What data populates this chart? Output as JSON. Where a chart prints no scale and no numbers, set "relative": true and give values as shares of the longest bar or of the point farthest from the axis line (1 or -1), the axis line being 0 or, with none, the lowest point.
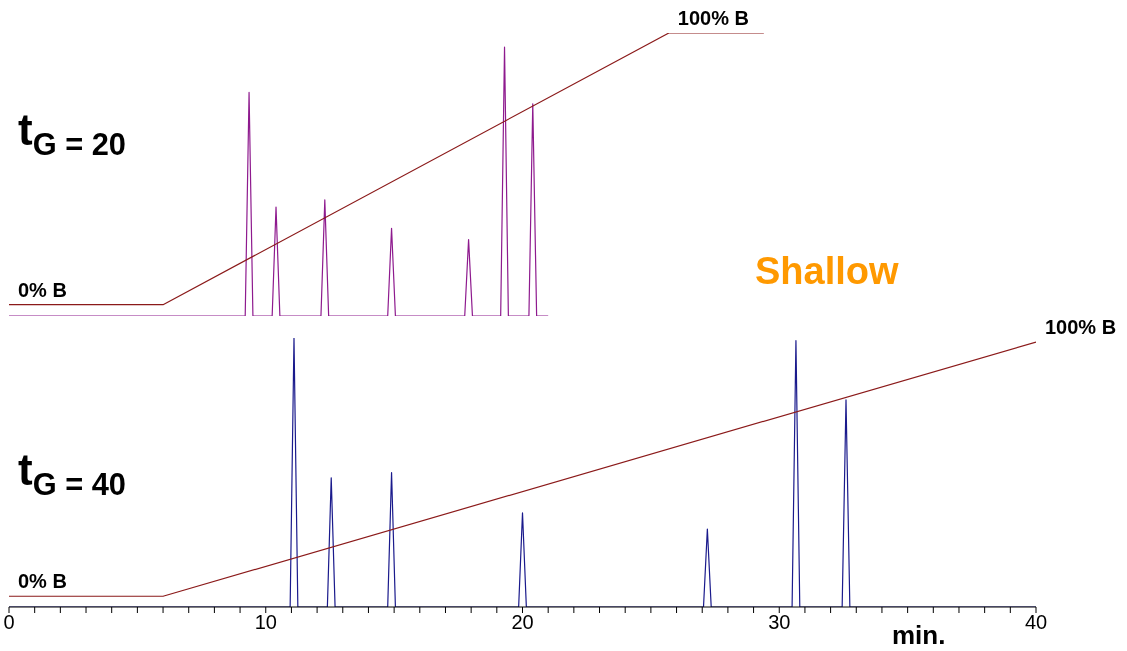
{
  "chart_data": [
    {
      "type": "line",
      "relative": true,
      "xlim": [
        0,
        40
      ],
      "tick_labels": false,
      "annotations": [
        "t$_{G = 20}$",
        "Shallow",
        {
          "text": "0% B",
          "x": 0,
          "y": 0.04
        },
        {
          "text": "100% B",
          "x": 25.7,
          "y": 1
        }
      ],
      "series": [
        {
          "color": "#8e1a8e",
          "x": [
            0,
            9.2,
            9.35,
            9.5,
            10.25,
            10.4,
            10.55,
            12.15,
            12.3,
            12.45,
            14.75,
            14.9,
            15.05,
            17.75,
            17.9,
            18.05,
            19.15,
            19.3,
            19.45,
            20.25,
            20.4,
            20.55,
            21
          ],
          "values": [
            0,
            0,
            0.79,
            0,
            0,
            0.385,
            0,
            0,
            0.41,
            0,
            0,
            0.31,
            0,
            0,
            0.27,
            0,
            0,
            0.95,
            0,
            0,
            0.75,
            0,
            0
          ]
        },
        {
          "color": "#8b1a1a",
          "x": [
            0,
            6,
            25.7,
            29.4
          ],
          "values": [
            0.04,
            0.04,
            1,
            1
          ]
        }
      ]
    },
    {
      "type": "line",
      "relative": true,
      "xlim": [
        0,
        40
      ],
      "xlabel": "min.",
      "xticks": [
        0,
        {
          "value": 1,
          "label": null
        },
        {
          "value": 2,
          "label": null
        },
        {
          "value": 3,
          "label": null
        },
        {
          "value": 4,
          "label": null
        },
        {
          "value": 5,
          "label": null
        },
        {
          "value": 6,
          "label": null
        },
        {
          "value": 7,
          "label": null
        },
        {
          "value": 8,
          "label": null
        },
        {
          "value": 9,
          "label": null
        },
        10,
        {
          "value": 11,
          "label": null
        },
        {
          "value": 12,
          "label": null
        },
        {
          "value": 13,
          "label": null
        },
        {
          "value": 14,
          "label": null
        },
        {
          "value": 15,
          "label": null
        },
        {
          "value": 16,
          "label": null
        },
        {
          "value": 17,
          "label": null
        },
        {
          "value": 18,
          "label": null
        },
        {
          "value": 19,
          "label": null
        },
        20,
        {
          "value": 21,
          "label": null
        },
        {
          "value": 22,
          "label": null
        },
        {
          "value": 23,
          "label": null
        },
        {
          "value": 24,
          "label": null
        },
        {
          "value": 25,
          "label": null
        },
        {
          "value": 26,
          "label": null
        },
        {
          "value": 27,
          "label": null
        },
        {
          "value": 28,
          "label": null
        },
        {
          "value": 29,
          "label": null
        },
        30,
        {
          "value": 31,
          "label": null
        },
        {
          "value": 32,
          "label": null
        },
        {
          "value": 33,
          "label": null
        },
        {
          "value": 34,
          "label": null
        },
        {
          "value": 35,
          "label": null
        },
        {
          "value": 36,
          "label": null
        },
        {
          "value": 37,
          "label": null
        },
        {
          "value": 38,
          "label": null
        },
        {
          "value": 39,
          "label": null
        },
        40
      ],
      "annotations": [
        "t$_{G = 40}$",
        {
          "text": "0% B",
          "x": 0,
          "y": 0.04
        },
        {
          "text": "100% B",
          "x": 40,
          "y": 0.985
        }
      ],
      "series": [
        {
          "color": "#1a1a8c",
          "x": [
            0,
            10.95,
            11.1,
            11.25,
            12.4,
            12.55,
            12.7,
            14.75,
            14.9,
            15.05,
            19.85,
            20,
            20.15,
            27.05,
            27.2,
            27.35,
            30.5,
            30.65,
            30.8,
            32.45,
            32.6,
            32.75,
            40
          ],
          "values": [
            0,
            0,
            1,
            0,
            0,
            0.48,
            0,
            0,
            0.5,
            0,
            0,
            0.35,
            0,
            0,
            0.29,
            0,
            0,
            0.99,
            0,
            0,
            0.77,
            0,
            0
          ]
        },
        {
          "color": "#8b1a1a",
          "x": [
            0,
            6,
            40
          ],
          "values": [
            0.04,
            0.04,
            0.985
          ]
        }
      ]
    }
  ]
}
